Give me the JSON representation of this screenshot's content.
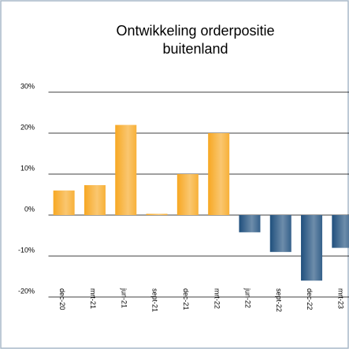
{
  "chart_data": {
    "type": "bar",
    "title": [
      "Ontwikkeling orderpositie",
      "buitenland"
    ],
    "categories": [
      "dec-20",
      "mrt-21",
      "jun-21",
      "sept-21",
      "dec-21",
      "mrt-22",
      "jun-22",
      "sept-22",
      "dec-22",
      "mrt-23"
    ],
    "values": [
      6,
      7.3,
      22,
      0.3,
      10,
      20,
      -4.2,
      -9,
      -16,
      -8
    ],
    "positive_color": "#f7a823",
    "negative_color": "#1f4f7d",
    "ylim": [
      -20,
      30
    ],
    "yticks": [
      {
        "value": -20,
        "label": "-20%"
      },
      {
        "value": -10,
        "label": "-10%"
      },
      {
        "value": 0,
        "label": "0%"
      },
      {
        "value": 10,
        "label": "10%"
      },
      {
        "value": 20,
        "label": "20%"
      },
      {
        "value": 30,
        "label": "30%"
      }
    ],
    "grid": true
  }
}
